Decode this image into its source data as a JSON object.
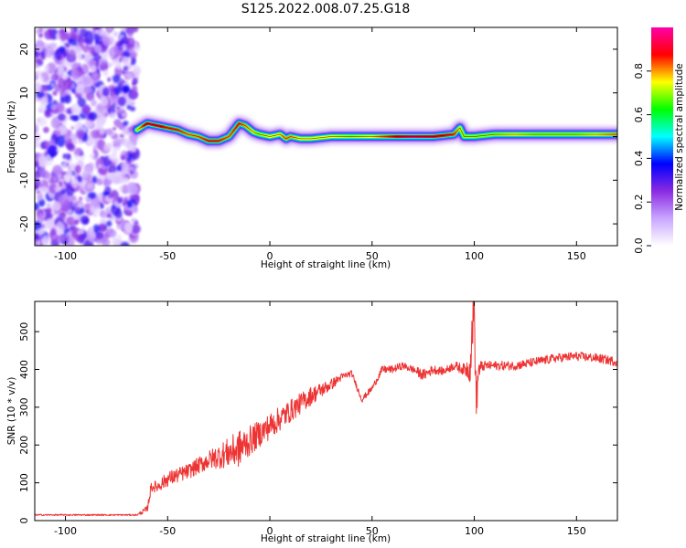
{
  "title": "S125.2022.008.07.25.G18",
  "chart_data": [
    {
      "type": "heatmap",
      "xlabel": "Height of straight line (km)",
      "ylabel": "Frequency (Hz)",
      "xlim": [
        -115,
        170
      ],
      "ylim": [
        -25,
        25
      ],
      "xticks": [
        -100,
        -50,
        0,
        50,
        100,
        150
      ],
      "yticks": [
        -20,
        -10,
        0,
        10,
        20
      ],
      "colorbar": {
        "label": "Normalized spectral amplitude",
        "range": [
          0.0,
          1.0
        ],
        "ticks": [
          0.0,
          0.2,
          0.4,
          0.6,
          0.8
        ],
        "colormap": [
          "#ffffff",
          "#c9a6ff",
          "#8a2be2",
          "#0000ff",
          "#00ffff",
          "#00ff00",
          "#ffff00",
          "#ff0000",
          "#ff00aa"
        ]
      },
      "noise_region_x": [
        -115,
        -65
      ],
      "ridge": {
        "x": [
          -65,
          -60,
          -55,
          -50,
          -45,
          -40,
          -35,
          -30,
          -25,
          -20,
          -15,
          -12,
          -8,
          -5,
          0,
          5,
          8,
          10,
          15,
          20,
          30,
          40,
          50,
          60,
          70,
          80,
          90,
          93,
          95,
          100,
          110,
          120,
          130,
          140,
          150,
          160,
          170
        ],
        "y": [
          1.5,
          3,
          2.5,
          2,
          1.5,
          0.5,
          0,
          -1,
          -1,
          0,
          3,
          2.5,
          1,
          0.5,
          0,
          0.5,
          -0.5,
          0,
          -0.5,
          -0.5,
          0,
          0,
          0,
          0,
          0,
          0,
          0.5,
          2,
          0,
          0,
          0.5,
          0.5,
          0.5,
          0.5,
          0.5,
          0.5,
          0.5
        ],
        "amplitude": [
          0.7,
          0.9,
          0.9,
          0.85,
          0.85,
          0.8,
          0.8,
          0.85,
          0.85,
          0.8,
          0.85,
          0.8,
          0.75,
          0.7,
          0.75,
          0.75,
          0.8,
          0.8,
          0.75,
          0.75,
          0.75,
          0.7,
          0.75,
          0.85,
          0.95,
          0.9,
          0.85,
          0.75,
          0.7,
          0.7,
          0.7,
          0.75,
          0.7,
          0.7,
          0.7,
          0.75,
          0.8
        ]
      }
    },
    {
      "type": "line",
      "xlabel": "Height of straight line (km)",
      "ylabel": "SNR (10 * v/v)",
      "xlim": [
        -115,
        170
      ],
      "ylim": [
        0,
        580
      ],
      "xticks": [
        -100,
        -50,
        0,
        50,
        100,
        150
      ],
      "yticks": [
        0,
        100,
        200,
        300,
        400,
        500
      ],
      "series": [
        {
          "color": "#ee3333",
          "x": [
            -115,
            -100,
            -80,
            -65,
            -60,
            -58,
            -55,
            -50,
            -40,
            -30,
            -20,
            -15,
            -10,
            -5,
            0,
            10,
            20,
            30,
            35,
            40,
            45,
            50,
            55,
            60,
            65,
            70,
            75,
            80,
            85,
            90,
            95,
            98,
            99,
            100,
            101,
            102,
            105,
            110,
            120,
            130,
            140,
            150,
            160,
            170
          ],
          "y": [
            15,
            15,
            15,
            15,
            30,
            90,
            90,
            110,
            130,
            160,
            180,
            190,
            210,
            230,
            250,
            290,
            330,
            360,
            380,
            390,
            320,
            350,
            400,
            400,
            410,
            400,
            385,
            400,
            395,
            410,
            400,
            405,
            510,
            560,
            300,
            400,
            410,
            410,
            410,
            420,
            430,
            435,
            430,
            420
          ],
          "noise": [
            2,
            2,
            2,
            2,
            10,
            15,
            15,
            20,
            20,
            25,
            40,
            50,
            40,
            35,
            35,
            30,
            25,
            15,
            10,
            8,
            8,
            8,
            10,
            10,
            10,
            10,
            15,
            12,
            10,
            12,
            15,
            40,
            60,
            80,
            60,
            25,
            12,
            12,
            12,
            12,
            12,
            12,
            12,
            12
          ]
        }
      ]
    }
  ]
}
